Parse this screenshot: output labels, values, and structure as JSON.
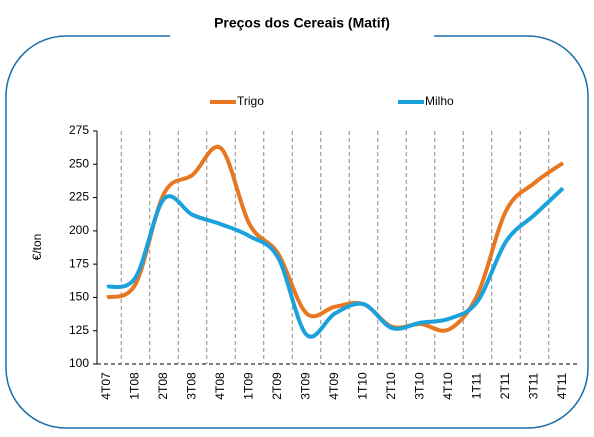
{
  "chart_data": {
    "type": "line",
    "title": "Preços dos Cereais (Matif)",
    "ylabel": "€/ton",
    "categories": [
      "4T07",
      "1T08",
      "2T08",
      "3T08",
      "4T08",
      "1T09",
      "2T09",
      "3T09",
      "4T09",
      "1T10",
      "2T10",
      "3T10",
      "4T10",
      "1T11",
      "2T11",
      "3T11",
      "4T11"
    ],
    "series": [
      {
        "name": "Trigo",
        "color": "#e87722",
        "values": [
          150,
          160,
          228,
          242,
          262,
          205,
          183,
          138,
          143,
          145,
          128,
          130,
          126,
          152,
          215,
          236,
          251
        ]
      },
      {
        "name": "Milho",
        "color": "#1ba1dc",
        "values": [
          158,
          165,
          224,
          212,
          205,
          196,
          180,
          122,
          138,
          145,
          127,
          131,
          134,
          147,
          192,
          212,
          232
        ]
      }
    ],
    "ylim": [
      100,
      275
    ],
    "yticks": [
      100,
      125,
      150,
      175,
      200,
      225,
      250,
      275
    ],
    "grid": true
  }
}
